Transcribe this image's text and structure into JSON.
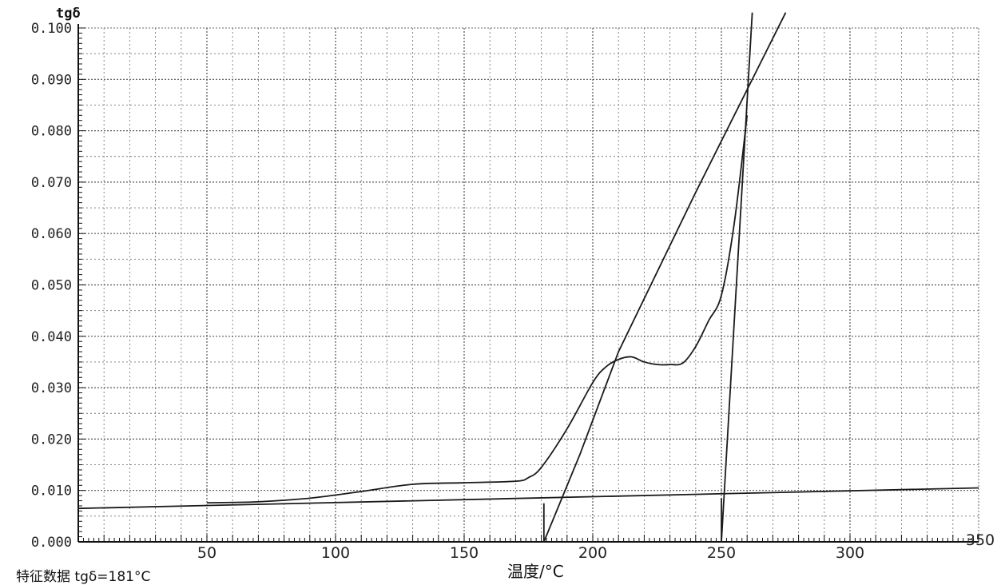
{
  "chart_data": {
    "type": "line",
    "title": "",
    "xlabel": "温度/°C",
    "ylabel": "tgδ",
    "xlim": [
      0,
      350
    ],
    "ylim": [
      0,
      0.1
    ],
    "x_ticks": [
      "50",
      "100",
      "150",
      "200",
      "250",
      "300",
      "350"
    ],
    "y_ticks": [
      "0.000",
      "0.010",
      "0.020",
      "0.030",
      "0.040",
      "0.050",
      "0.060",
      "0.070",
      "0.080",
      "0.090",
      "0.100"
    ],
    "grid": true,
    "series": [
      {
        "role": "measured-curve",
        "x": [
          50,
          70,
          90,
          110,
          130,
          150,
          170,
          175,
          180,
          190,
          200,
          205,
          210,
          215,
          220,
          225,
          230,
          235,
          240,
          245,
          250,
          255,
          260
        ],
        "y": [
          0.0076,
          0.0078,
          0.0085,
          0.0098,
          0.0112,
          0.0115,
          0.0118,
          0.0125,
          0.0145,
          0.022,
          0.031,
          0.034,
          0.0355,
          0.036,
          0.035,
          0.0345,
          0.0345,
          0.0348,
          0.038,
          0.043,
          0.048,
          0.062,
          0.083
        ]
      },
      {
        "role": "baseline-tangent",
        "x": [
          0,
          350
        ],
        "y": [
          0.0065,
          0.0105
        ]
      },
      {
        "role": "rising-tangent",
        "x": [
          181,
          195,
          210,
          240,
          265,
          275
        ],
        "y": [
          0.0,
          0.017,
          0.037,
          0.068,
          0.093,
          0.103
        ]
      },
      {
        "role": "steep-tangent",
        "x": [
          250,
          262
        ],
        "y": [
          0.0,
          0.103
        ]
      }
    ],
    "vertical_markers": [
      {
        "x": 181,
        "y_top": 0.0075
      },
      {
        "x": 250,
        "y_top": 0.0085
      }
    ],
    "footnote": "特征数据   tgδ=181°C"
  }
}
